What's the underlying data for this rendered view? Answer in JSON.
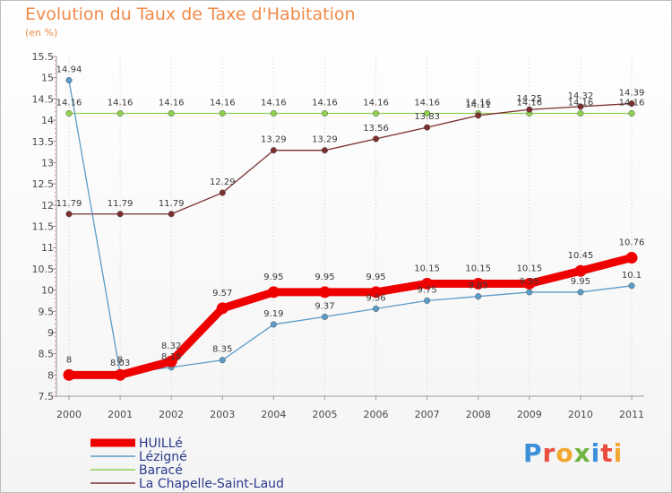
{
  "title": "Evolution du Taux de Taxe d'Habitation",
  "unit": "(en %)",
  "logo": {
    "text": "Proxiti",
    "letter_colors": [
      "#3b8ed8",
      "#e94d3b",
      "#f2a72f",
      "#6fb43f",
      "#3b8ed8",
      "#e94d3b",
      "#f2a72f"
    ]
  },
  "chart_data": {
    "type": "line",
    "x": [
      "2000",
      "2001",
      "2002",
      "2003",
      "2004",
      "2005",
      "2006",
      "2007",
      "2008",
      "2009",
      "2010",
      "2011"
    ],
    "ylim": [
      7.5,
      15.5
    ],
    "yticks": [
      "7.5",
      "8",
      "8.5",
      "9",
      "9.5",
      "10",
      "10.5",
      "11",
      "11.5",
      "12",
      "12.5",
      "13",
      "13.5",
      "14",
      "14.5",
      "15",
      "15.5"
    ],
    "grid": "dotted-vertical",
    "legend_position": "bottom-left",
    "series": [
      {
        "name": "HUILLé",
        "color": "#ee0000",
        "values": [
          8,
          8,
          8.32,
          9.57,
          9.95,
          9.95,
          9.95,
          10.15,
          10.15,
          10.15,
          10.45,
          10.76
        ],
        "labels": [
          "8",
          "8",
          "8.32",
          "9.57",
          "9.95",
          "9.95",
          "9.95",
          "10.15",
          "10.15",
          "10.15",
          "10.45",
          "10.76"
        ]
      },
      {
        "name": "Lézigné",
        "color": "#5b9bc8",
        "values": [
          14.94,
          8.03,
          8.18,
          8.35,
          9.19,
          9.37,
          9.56,
          9.75,
          9.85,
          9.95,
          9.95,
          10.1
        ],
        "labels": [
          "14.94",
          "8.03",
          "8.18",
          "8.35",
          "9.19",
          "9.37",
          "9.56",
          "9.75",
          "9.85",
          "9.95",
          "9.95",
          "10.1"
        ]
      },
      {
        "name": "Baracé",
        "color": "#8fd14f",
        "values": [
          14.16,
          14.16,
          14.16,
          14.16,
          14.16,
          14.16,
          14.16,
          14.16,
          14.16,
          14.16,
          14.16,
          14.16
        ],
        "labels": [
          "14.16",
          "14.16",
          "14.16",
          "14.16",
          "14.16",
          "14.16",
          "14.16",
          "14.16",
          "14.16",
          "14.16",
          "14.16",
          "14.16"
        ]
      },
      {
        "name": "La Chapelle-Saint-Laud",
        "color": "#7a2e2e",
        "values": [
          11.79,
          11.79,
          11.79,
          12.29,
          13.29,
          13.29,
          13.56,
          13.83,
          14.11,
          14.25,
          14.32,
          14.39
        ],
        "labels": [
          "11.79",
          "11.79",
          "11.79",
          "12.29",
          "13.29",
          "13.29",
          "13.56",
          "13.83",
          "14.11",
          "14.25",
          "14.32",
          "14.39"
        ]
      }
    ]
  }
}
